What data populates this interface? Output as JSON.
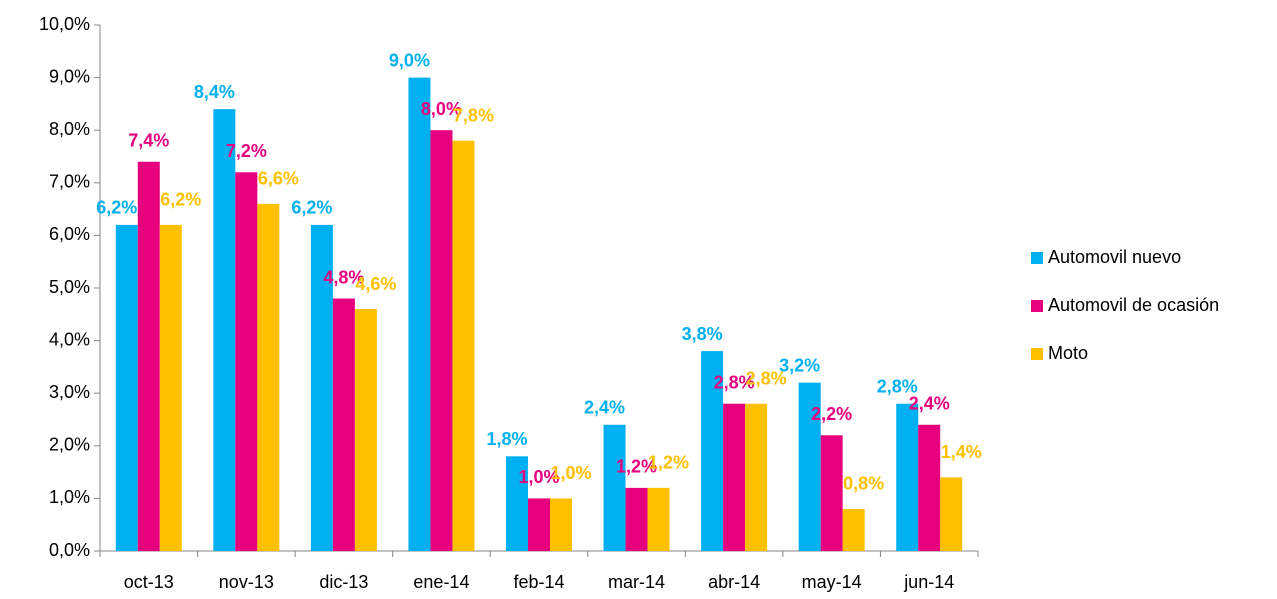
{
  "chart_data": {
    "type": "bar",
    "categories": [
      "oct-13",
      "nov-13",
      "dic-13",
      "ene-14",
      "feb-14",
      "mar-14",
      "abr-14",
      "may-14",
      "jun-14"
    ],
    "series": [
      {
        "name": "Automovil nuevo",
        "color": "#00b0f0",
        "values": [
          6.2,
          8.4,
          6.2,
          9.0,
          1.8,
          2.4,
          3.8,
          3.2,
          2.8
        ],
        "value_labels": [
          "6,2%",
          "8,4%",
          "6,2%",
          "9,0%",
          "1,8%",
          "2,4%",
          "3,8%",
          "3,2%",
          "2,8%"
        ]
      },
      {
        "name": "Automovil de ocasión",
        "color": "#e6007e",
        "values": [
          7.4,
          7.2,
          4.8,
          8.0,
          1.0,
          1.2,
          2.8,
          2.2,
          2.4
        ],
        "value_labels": [
          "7,4%",
          "7,2%",
          "4,8%",
          "8,0%",
          "1,0%",
          "1,2%",
          "2,8%",
          "2,2%",
          "2,4%"
        ]
      },
      {
        "name": "Moto",
        "color": "#ffc000",
        "values": [
          6.2,
          6.6,
          4.6,
          7.8,
          1.0,
          1.2,
          2.8,
          0.8,
          1.4
        ],
        "value_labels": [
          "6,2%",
          "6,6%",
          "4,6%",
          "7,8%",
          "1,0%",
          "1,2%",
          "2,8%",
          "0,8%",
          "1,4%"
        ]
      }
    ],
    "ylim": [
      0,
      10
    ],
    "yticks": [
      {
        "value": 0,
        "label": "0,0%"
      },
      {
        "value": 1,
        "label": "1,0%"
      },
      {
        "value": 2,
        "label": "2,0%"
      },
      {
        "value": 3,
        "label": "3,0%"
      },
      {
        "value": 4,
        "label": "4,0%"
      },
      {
        "value": 5,
        "label": "5,0%"
      },
      {
        "value": 6,
        "label": "6,0%"
      },
      {
        "value": 7,
        "label": "7,0%"
      },
      {
        "value": 8,
        "label": "8,0%"
      },
      {
        "value": 9,
        "label": "9,0%"
      },
      {
        "value": 10,
        "label": "10,0%"
      }
    ],
    "grid": false,
    "legend": "right"
  }
}
